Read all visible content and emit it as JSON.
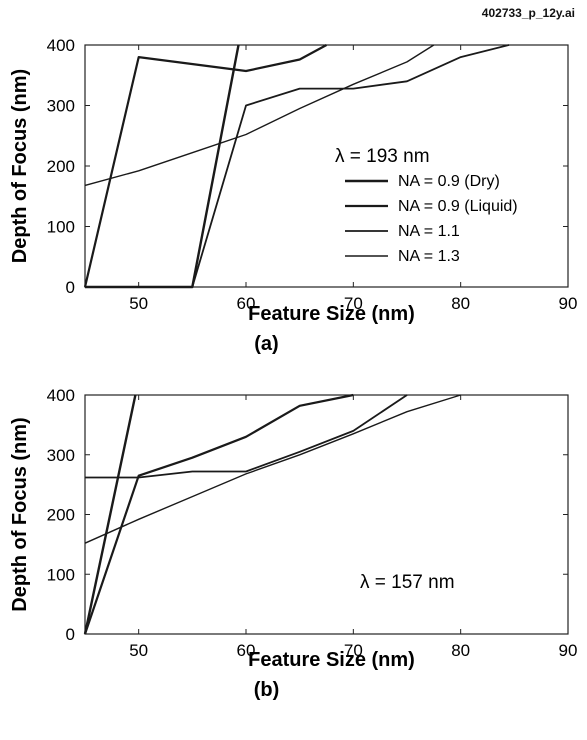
{
  "file_id": "402733_p_12y.ai",
  "chart_data": [
    {
      "type": "line",
      "panel_label": "(a)",
      "xlabel": "Feature Size (nm)",
      "ylabel": "Depth of Focus (nm)",
      "xlim": [
        45,
        90
      ],
      "ylim": [
        0,
        400
      ],
      "xticks": [
        50,
        60,
        70,
        80,
        90
      ],
      "yticks": [
        0,
        100,
        200,
        300,
        400
      ],
      "annotation": "λ = 193 nm",
      "legend_position": "center-right",
      "series": [
        {
          "name": "NA = 0.9 (Dry)",
          "x": [
            45,
            55,
            59.3
          ],
          "y": [
            0,
            0,
            400
          ]
        },
        {
          "name": "NA = 0.9 (Liquid)",
          "x": [
            45,
            50,
            60,
            65,
            67.5
          ],
          "y": [
            0,
            380,
            357,
            376,
            400
          ]
        },
        {
          "name": "NA = 1.1",
          "x": [
            55,
            60,
            65,
            70,
            75,
            80,
            84.5
          ],
          "y": [
            0,
            300,
            328,
            328,
            340,
            380,
            400
          ]
        },
        {
          "name": "NA = 1.3",
          "x": [
            45,
            50,
            55,
            60,
            65,
            70,
            75,
            77.5
          ],
          "y": [
            168,
            192,
            222,
            252,
            295,
            335,
            372,
            400
          ]
        }
      ]
    },
    {
      "type": "line",
      "panel_label": "(b)",
      "xlabel": "Feature Size (nm)",
      "ylabel": "Depth of Focus (nm)",
      "xlim": [
        45,
        90
      ],
      "ylim": [
        0,
        400
      ],
      "xticks": [
        50,
        60,
        70,
        80,
        90
      ],
      "yticks": [
        0,
        100,
        200,
        300,
        400
      ],
      "annotation": "λ = 157 nm",
      "series": [
        {
          "x": [
            45,
            49.7
          ],
          "y": [
            0,
            400
          ]
        },
        {
          "x": [
            45,
            50,
            55,
            60,
            65,
            70
          ],
          "y": [
            0,
            265,
            295,
            330,
            382,
            400
          ]
        },
        {
          "x": [
            45,
            50,
            55,
            60,
            65,
            70,
            75
          ],
          "y": [
            262,
            262,
            272,
            272,
            305,
            340,
            400
          ]
        },
        {
          "x": [
            45,
            50,
            55,
            60,
            65,
            70,
            75,
            80
          ],
          "y": [
            152,
            192,
            230,
            268,
            300,
            335,
            372,
            400
          ]
        }
      ]
    }
  ]
}
